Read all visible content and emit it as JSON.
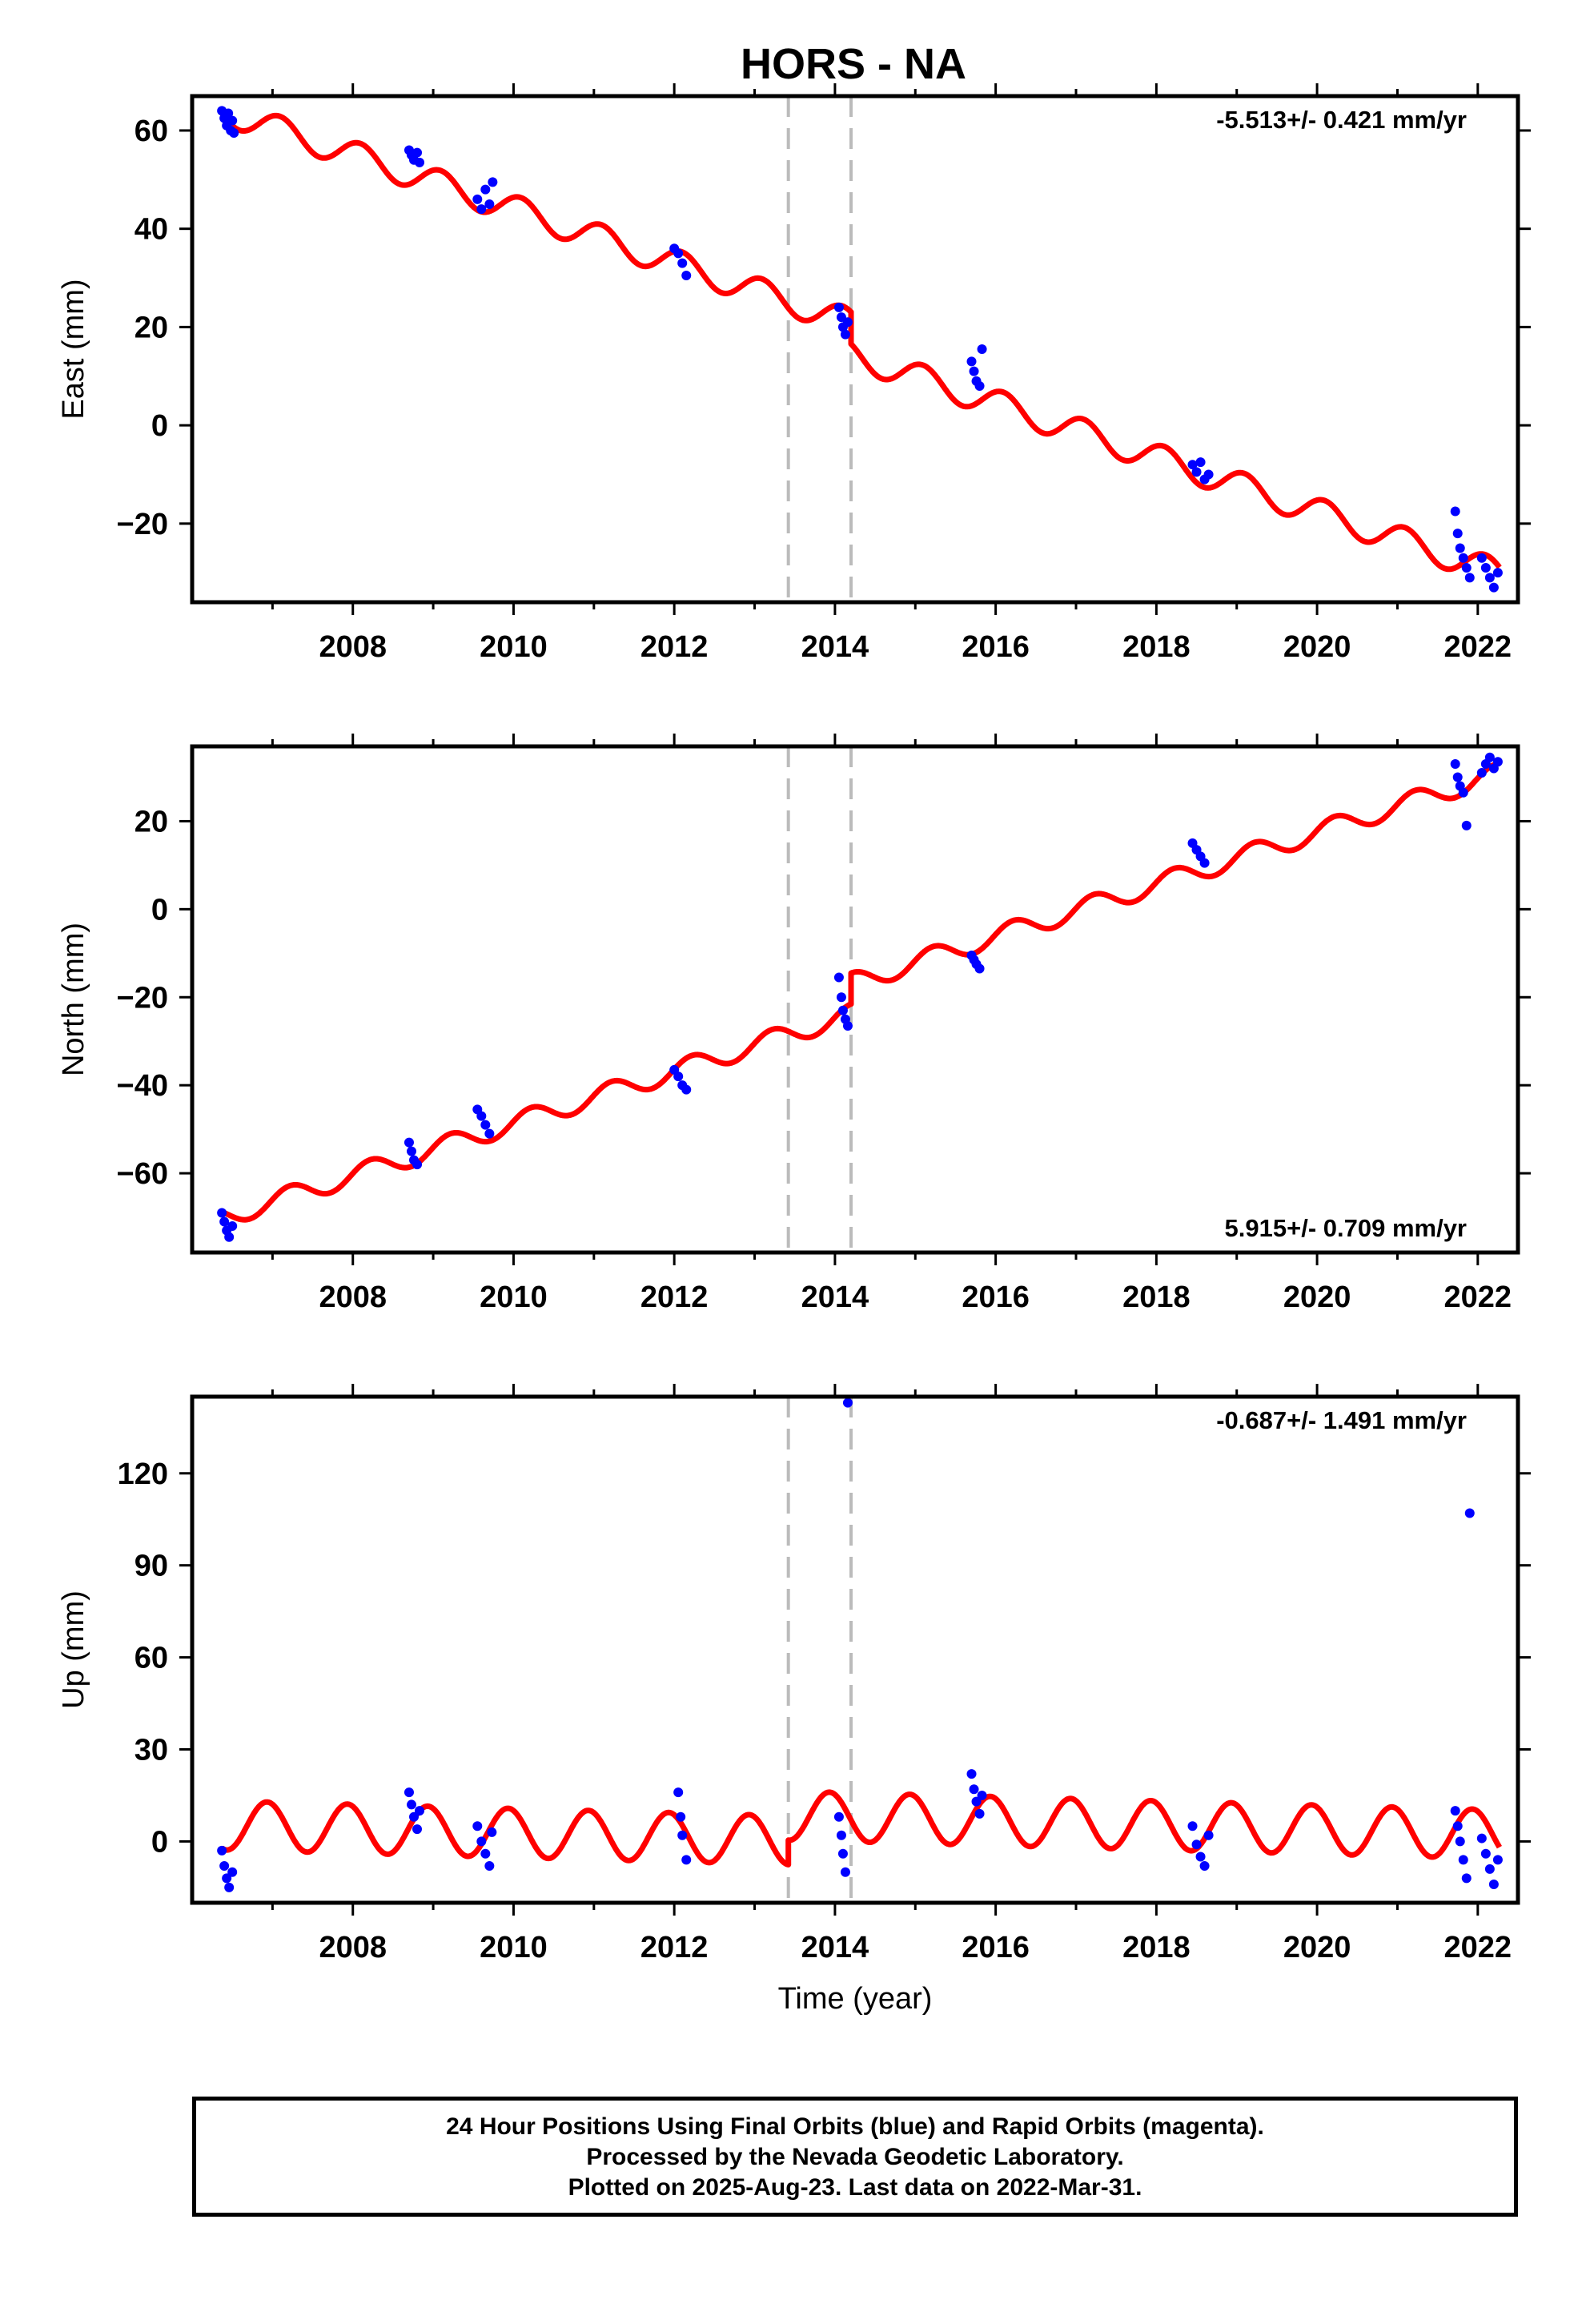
{
  "title": "HORS - NA",
  "footer": {
    "line1": "24 Hour Positions Using Final Orbits (blue) and Rapid Orbits (magenta).",
    "line2": "Processed by the Nevada Geodetic Laboratory.",
    "line3": "Plotted on 2025-Aug-23. Last data on 2022-Mar-31."
  },
  "colors": {
    "observations": "#0000ff",
    "model": "#ff0000",
    "step_lines": "#bbbbbb",
    "frame": "#000000"
  },
  "chart_data": [
    {
      "type": "scatter",
      "panel": "east",
      "ylabel": "East (mm)",
      "xlabel": "",
      "rate_label": "-5.513+/- 0.421 mm/yr",
      "rate_position": "top-right",
      "xlim": [
        2006.0,
        2022.5
      ],
      "ylim": [
        -36,
        67
      ],
      "xticks": [
        2008,
        2010,
        2012,
        2014,
        2016,
        2018,
        2020,
        2022
      ],
      "yticks": [
        -20,
        0,
        20,
        40,
        60
      ],
      "step_lines_x": [
        2013.42,
        2014.2
      ],
      "model": {
        "name": "model fit",
        "rate": -5.513,
        "intercept_2014": 22.0,
        "annual_amplitude": 2.8,
        "annual_phase": 1.0,
        "steps": [
          {
            "x": 2014.2,
            "offset": -6.5
          }
        ]
      },
      "series": [
        {
          "name": "final orbits",
          "x_values": [
            2006.37,
            2006.4,
            2006.43,
            2006.45,
            2006.48,
            2006.5,
            2006.52
          ],
          "y_values": [
            64,
            62.5,
            61,
            63.5,
            60,
            62,
            59.5
          ]
        },
        {
          "name": "final orbits",
          "x_values": [
            2008.7,
            2008.73,
            2008.76,
            2008.8,
            2008.83
          ],
          "y_values": [
            56,
            55,
            54,
            55.5,
            53.5
          ]
        },
        {
          "name": "final orbits",
          "x_values": [
            2009.55,
            2009.6,
            2009.65,
            2009.7,
            2009.74
          ],
          "y_values": [
            46,
            44,
            48,
            45,
            49.5
          ]
        },
        {
          "name": "final orbits",
          "x_values": [
            2012.0,
            2012.05,
            2012.1,
            2012.15
          ],
          "y_values": [
            36,
            35,
            33,
            30.5
          ]
        },
        {
          "name": "final orbits",
          "x_values": [
            2014.05,
            2014.08,
            2014.1,
            2014.13,
            2014.16
          ],
          "y_values": [
            24,
            22,
            20,
            18.5,
            21
          ]
        },
        {
          "name": "final orbits",
          "x_values": [
            2015.7,
            2015.73,
            2015.76,
            2015.8,
            2015.83
          ],
          "y_values": [
            13,
            11,
            9,
            8,
            15.5
          ]
        },
        {
          "name": "final orbits",
          "x_values": [
            2018.45,
            2018.5,
            2018.55,
            2018.6,
            2018.65
          ],
          "y_values": [
            -8,
            -9.5,
            -7.5,
            -11,
            -10
          ]
        },
        {
          "name": "final orbits",
          "x_values": [
            2021.72,
            2021.75,
            2021.78,
            2021.82,
            2021.86,
            2021.9
          ],
          "y_values": [
            -17.5,
            -22,
            -25,
            -27,
            -29,
            -31
          ]
        },
        {
          "name": "final orbits",
          "x_values": [
            2022.05,
            2022.1,
            2022.15,
            2022.2,
            2022.25
          ],
          "y_values": [
            -27,
            -29,
            -31,
            -33,
            -30
          ]
        }
      ]
    },
    {
      "type": "scatter",
      "panel": "north",
      "ylabel": "North (mm)",
      "xlabel": "",
      "rate_label": "5.915+/- 0.709 mm/yr",
      "rate_position": "bottom-right",
      "xlim": [
        2006.0,
        2022.5
      ],
      "ylim": [
        -78,
        37
      ],
      "xticks": [
        2008,
        2010,
        2012,
        2014,
        2016,
        2018,
        2020,
        2022
      ],
      "yticks": [
        -60,
        -40,
        -20,
        0,
        20
      ],
      "step_lines_x": [
        2013.42,
        2014.2
      ],
      "model": {
        "name": "model fit",
        "rate": 5.915,
        "intercept_2014": -25.0,
        "annual_amplitude": 2.3,
        "annual_phase": 0.2,
        "steps": [
          {
            "x": 2014.2,
            "offset": 7.0
          }
        ]
      },
      "series": [
        {
          "name": "final orbits",
          "x_values": [
            2006.37,
            2006.4,
            2006.43,
            2006.46,
            2006.5
          ],
          "y_values": [
            -69,
            -71,
            -73,
            -74.5,
            -72
          ]
        },
        {
          "name": "final orbits",
          "x_values": [
            2008.7,
            2008.73,
            2008.76,
            2008.8
          ],
          "y_values": [
            -53,
            -55,
            -57,
            -58
          ]
        },
        {
          "name": "final orbits",
          "x_values": [
            2009.55,
            2009.6,
            2009.65,
            2009.7
          ],
          "y_values": [
            -45.5,
            -47,
            -49,
            -51
          ]
        },
        {
          "name": "final orbits",
          "x_values": [
            2012.0,
            2012.05,
            2012.1,
            2012.15
          ],
          "y_values": [
            -36.5,
            -38,
            -40,
            -41
          ]
        },
        {
          "name": "final orbits",
          "x_values": [
            2014.05,
            2014.08,
            2014.1,
            2014.13,
            2014.16
          ],
          "y_values": [
            -15.5,
            -20,
            -23,
            -25,
            -26.5
          ]
        },
        {
          "name": "final orbits",
          "x_values": [
            2015.7,
            2015.73,
            2015.76,
            2015.8
          ],
          "y_values": [
            -10.5,
            -11.5,
            -12.5,
            -13.5
          ]
        },
        {
          "name": "final orbits",
          "x_values": [
            2018.45,
            2018.5,
            2018.55,
            2018.6
          ],
          "y_values": [
            15,
            13.5,
            12,
            10.5
          ]
        },
        {
          "name": "final orbits",
          "x_values": [
            2021.72,
            2021.75,
            2021.78,
            2021.82,
            2021.86
          ],
          "y_values": [
            33,
            30,
            28,
            26.5,
            19
          ]
        },
        {
          "name": "final orbits",
          "x_values": [
            2022.05,
            2022.1,
            2022.15,
            2022.2,
            2022.25
          ],
          "y_values": [
            31,
            33,
            34.5,
            32,
            33.5
          ]
        }
      ]
    },
    {
      "type": "scatter",
      "panel": "up",
      "ylabel": "Up (mm)",
      "xlabel": "Time (year)",
      "rate_label": "-0.687+/- 1.491 mm/yr",
      "rate_position": "top-right",
      "xlim": [
        2006.0,
        2022.5
      ],
      "ylim": [
        -20,
        145
      ],
      "xticks": [
        2008,
        2010,
        2012,
        2014,
        2016,
        2018,
        2020,
        2022
      ],
      "yticks": [
        0,
        30,
        60,
        90,
        120
      ],
      "step_lines_x": [
        2013.42,
        2014.2
      ],
      "model": {
        "name": "model fit",
        "rate": -0.687,
        "intercept_2014": 0.0,
        "annual_amplitude": 8.0,
        "annual_phase": 2.0,
        "steps": [
          {
            "x": 2013.42,
            "offset": 8.0
          }
        ]
      },
      "series": [
        {
          "name": "final orbits",
          "x_values": [
            2006.37,
            2006.4,
            2006.43,
            2006.46,
            2006.5
          ],
          "y_values": [
            -3,
            -8,
            -12,
            -15,
            -10
          ]
        },
        {
          "name": "final orbits",
          "x_values": [
            2008.7,
            2008.73,
            2008.76,
            2008.8,
            2008.83
          ],
          "y_values": [
            16,
            12,
            8,
            4,
            10
          ]
        },
        {
          "name": "final orbits",
          "x_values": [
            2009.55,
            2009.6,
            2009.65,
            2009.7,
            2009.73
          ],
          "y_values": [
            5,
            0,
            -4,
            -8,
            3
          ]
        },
        {
          "name": "final orbits",
          "x_values": [
            2012.05,
            2012.08,
            2012.1,
            2012.15
          ],
          "y_values": [
            16,
            8,
            2,
            -6
          ]
        },
        {
          "name": "final orbits",
          "x_values": [
            2014.05,
            2014.08,
            2014.1,
            2014.13,
            2014.16
          ],
          "y_values": [
            8,
            2,
            -4,
            -10,
            143
          ]
        },
        {
          "name": "final orbits",
          "x_values": [
            2015.7,
            2015.73,
            2015.76,
            2015.8,
            2015.83
          ],
          "y_values": [
            22,
            17,
            13,
            9,
            15
          ]
        },
        {
          "name": "final orbits",
          "x_values": [
            2018.45,
            2018.5,
            2018.55,
            2018.6,
            2018.65
          ],
          "y_values": [
            5,
            -1,
            -5,
            -8,
            2
          ]
        },
        {
          "name": "final orbits",
          "x_values": [
            2021.72,
            2021.75,
            2021.78,
            2021.82,
            2021.86,
            2021.9
          ],
          "y_values": [
            10,
            5,
            0,
            -6,
            -12,
            107
          ]
        },
        {
          "name": "final orbits",
          "x_values": [
            2022.05,
            2022.1,
            2022.15,
            2022.2,
            2022.25
          ],
          "y_values": [
            1,
            -4,
            -9,
            -14,
            -6
          ]
        }
      ]
    }
  ]
}
